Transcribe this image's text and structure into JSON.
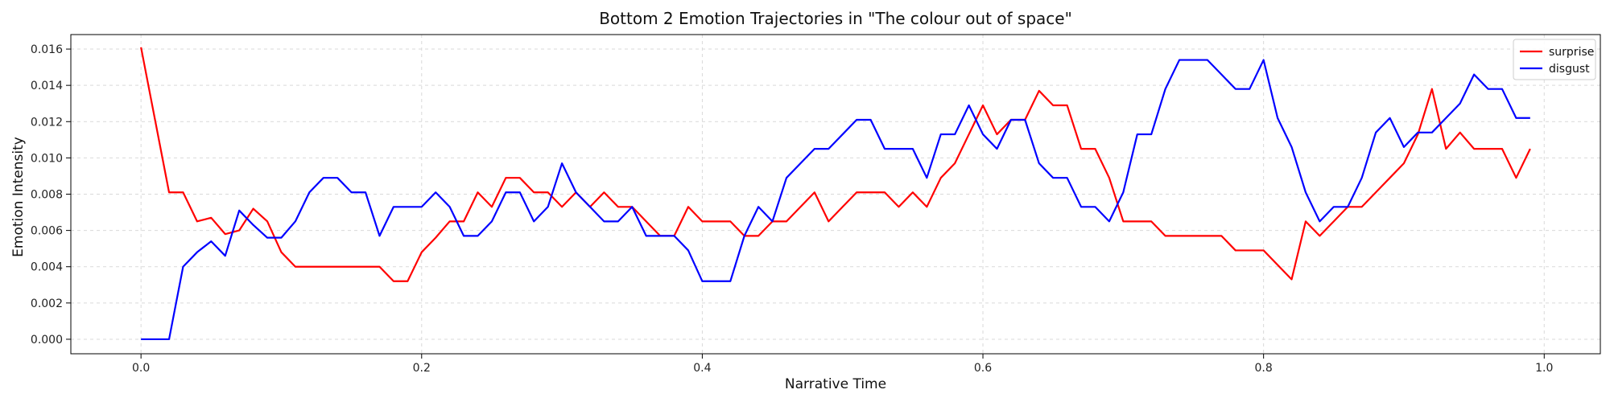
{
  "chart_data": {
    "type": "line",
    "title": "Bottom 2 Emotion Trajectories in \"The colour out of space\"",
    "xlabel": "Narrative Time",
    "ylabel": "Emotion Intensity",
    "xlim": [
      -0.05,
      1.04
    ],
    "ylim": [
      -0.0008,
      0.0168
    ],
    "xticks": [
      0.0,
      0.2,
      0.4,
      0.6,
      0.8,
      1.0
    ],
    "xtick_labels": [
      "0.0",
      "0.2",
      "0.4",
      "0.6",
      "0.8",
      "1.0"
    ],
    "yticks": [
      0.0,
      0.002,
      0.004,
      0.006,
      0.008,
      0.01,
      0.012,
      0.014,
      0.016
    ],
    "ytick_labels": [
      "0.000",
      "0.002",
      "0.004",
      "0.006",
      "0.008",
      "0.010",
      "0.012",
      "0.014",
      "0.016"
    ],
    "grid": true,
    "legend_position": "top-right",
    "x": [
      0.0,
      0.01,
      0.02,
      0.03,
      0.04,
      0.05,
      0.06,
      0.07,
      0.08,
      0.09,
      0.1,
      0.11,
      0.12,
      0.13,
      0.14,
      0.15,
      0.16,
      0.17,
      0.18,
      0.19,
      0.2,
      0.21,
      0.22,
      0.23,
      0.24,
      0.25,
      0.26,
      0.27,
      0.28,
      0.29,
      0.3,
      0.31,
      0.32,
      0.33,
      0.34,
      0.35,
      0.36,
      0.37,
      0.38,
      0.39,
      0.4,
      0.41,
      0.42,
      0.43,
      0.44,
      0.45,
      0.46,
      0.47,
      0.48,
      0.49,
      0.5,
      0.51,
      0.52,
      0.53,
      0.54,
      0.55,
      0.56,
      0.57,
      0.58,
      0.59,
      0.6,
      0.61,
      0.62,
      0.63,
      0.64,
      0.65,
      0.66,
      0.67,
      0.68,
      0.69,
      0.7,
      0.71,
      0.72,
      0.73,
      0.74,
      0.75,
      0.76,
      0.77,
      0.78,
      0.79,
      0.8,
      0.81,
      0.82,
      0.83,
      0.84,
      0.85,
      0.86,
      0.87,
      0.88,
      0.89,
      0.9,
      0.91,
      0.92,
      0.93,
      0.94,
      0.95,
      0.96,
      0.97,
      0.98,
      0.99
    ],
    "series": [
      {
        "name": "surprise",
        "color": "#ff0000",
        "values": [
          0.0161,
          0.0121,
          0.0081,
          0.0081,
          0.0065,
          0.0067,
          0.0058,
          0.006,
          0.0072,
          0.0065,
          0.0048,
          0.004,
          0.004,
          0.004,
          0.004,
          0.004,
          0.004,
          0.004,
          0.0032,
          0.0032,
          0.0048,
          0.0056,
          0.0065,
          0.0065,
          0.0081,
          0.0073,
          0.0089,
          0.0089,
          0.0081,
          0.0081,
          0.0073,
          0.0081,
          0.0073,
          0.0081,
          0.0073,
          0.0073,
          0.0065,
          0.0057,
          0.0057,
          0.0073,
          0.0065,
          0.0065,
          0.0065,
          0.0057,
          0.0057,
          0.0065,
          0.0065,
          0.0073,
          0.0081,
          0.0065,
          0.0073,
          0.0081,
          0.0081,
          0.0081,
          0.0073,
          0.0081,
          0.0073,
          0.0089,
          0.0097,
          0.0113,
          0.0129,
          0.0113,
          0.0121,
          0.0121,
          0.0137,
          0.0129,
          0.0129,
          0.0105,
          0.0105,
          0.0089,
          0.0065,
          0.0065,
          0.0065,
          0.0057,
          0.0057,
          0.0057,
          0.0057,
          0.0057,
          0.0049,
          0.0049,
          0.0049,
          0.0041,
          0.0033,
          0.0065,
          0.0057,
          0.0065,
          0.0073,
          0.0073,
          0.0081,
          0.0089,
          0.0097,
          0.0113,
          0.0138,
          0.0105,
          0.0114,
          0.0105,
          0.0105,
          0.0105,
          0.0089,
          0.0105
        ]
      },
      {
        "name": "disgust",
        "color": "#0000ff",
        "values": [
          0.0,
          0.0,
          0.0,
          0.004,
          0.0048,
          0.0054,
          0.0046,
          0.0071,
          0.0063,
          0.0056,
          0.0056,
          0.0065,
          0.0081,
          0.0089,
          0.0089,
          0.0081,
          0.0081,
          0.0057,
          0.0073,
          0.0073,
          0.0073,
          0.0081,
          0.0073,
          0.0057,
          0.0057,
          0.0065,
          0.0081,
          0.0081,
          0.0065,
          0.0073,
          0.0097,
          0.0081,
          0.0073,
          0.0065,
          0.0065,
          0.0073,
          0.0057,
          0.0057,
          0.0057,
          0.0049,
          0.0032,
          0.0032,
          0.0032,
          0.0057,
          0.0073,
          0.0065,
          0.0089,
          0.0097,
          0.0105,
          0.0105,
          0.0113,
          0.0121,
          0.0121,
          0.0105,
          0.0105,
          0.0105,
          0.0089,
          0.0113,
          0.0113,
          0.0129,
          0.0113,
          0.0105,
          0.0121,
          0.0121,
          0.0097,
          0.0089,
          0.0089,
          0.0073,
          0.0073,
          0.0065,
          0.0081,
          0.0113,
          0.0113,
          0.0138,
          0.0154,
          0.0154,
          0.0154,
          0.0146,
          0.0138,
          0.0138,
          0.0154,
          0.0122,
          0.0106,
          0.0081,
          0.0065,
          0.0073,
          0.0073,
          0.0089,
          0.0114,
          0.0122,
          0.0106,
          0.0114,
          0.0114,
          0.0122,
          0.013,
          0.0146,
          0.0138,
          0.0138,
          0.0122,
          0.0122
        ]
      }
    ]
  }
}
